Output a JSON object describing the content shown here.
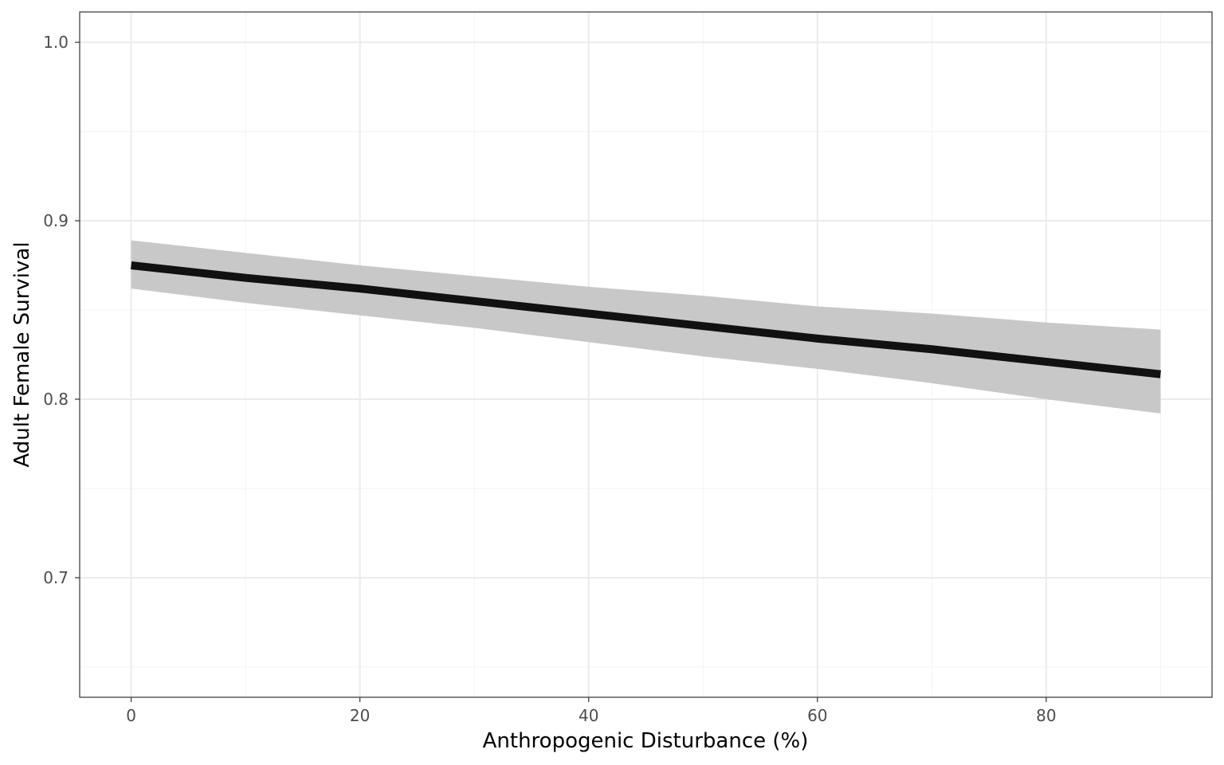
{
  "chart_data": {
    "type": "line",
    "title": "",
    "xlabel": "Anthropogenic Disturbance (%)",
    "ylabel": "Adult Female Survival",
    "xlim": [
      -4.5,
      94.5
    ],
    "ylim": [
      0.633,
      1.017
    ],
    "x_ticks": [
      0,
      20,
      40,
      60,
      80
    ],
    "x_tick_labels": [
      "0",
      "20",
      "40",
      "60",
      "80"
    ],
    "y_ticks": [
      0.7,
      0.8,
      0.9,
      1.0
    ],
    "y_tick_labels": [
      "0.7",
      "0.8",
      "0.9",
      "1.0"
    ],
    "x_minor_ticks": [
      10,
      30,
      50,
      70,
      90
    ],
    "y_minor_ticks": [
      0.65,
      0.75,
      0.85,
      0.95
    ],
    "grid": true,
    "legend": "none",
    "series": [
      {
        "x": [
          0,
          10,
          20,
          30,
          40,
          50,
          60,
          70,
          80,
          90
        ],
        "values": [
          0.875,
          0.868,
          0.862,
          0.855,
          0.848,
          0.841,
          0.834,
          0.828,
          0.821,
          0.814
        ],
        "lower": [
          0.862,
          0.854,
          0.847,
          0.84,
          0.832,
          0.824,
          0.817,
          0.809,
          0.8,
          0.792
        ],
        "upper": [
          0.889,
          0.882,
          0.875,
          0.869,
          0.863,
          0.858,
          0.852,
          0.848,
          0.843,
          0.839
        ]
      }
    ],
    "colors": {
      "line": "#111111",
      "ribbon": "#c8c8c8",
      "grid_major": "#ebebeb",
      "grid_minor": "#f3f3f3",
      "panel_border": "#333333",
      "tick": "#333333"
    }
  }
}
